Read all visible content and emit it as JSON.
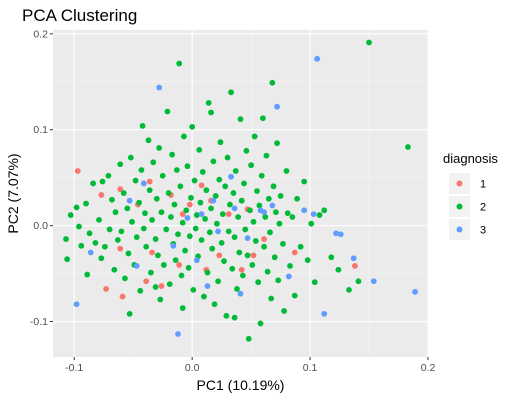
{
  "chart_data": {
    "type": "scatter",
    "title": "PCA Clustering",
    "xlabel": "PC1 (10.19%)",
    "ylabel": "PC2 (7.07%)",
    "xlim": [
      -0.118,
      0.2
    ],
    "ylim": [
      -0.137,
      0.204
    ],
    "xticks": [
      -0.1,
      0.0,
      0.1,
      0.2
    ],
    "xtick_labels": [
      "-0.1",
      "0.0",
      "0.1",
      "0.2"
    ],
    "yticks": [
      -0.1,
      0.0,
      0.1,
      0.2
    ],
    "ytick_labels": [
      "-0.1",
      "0.0",
      "0.1",
      "0.2"
    ],
    "grid": true,
    "panel_background": "#ebebeb",
    "legend": {
      "title": "diagnosis",
      "position": "right",
      "entries": [
        {
          "label": "1",
          "color": "#f8766d"
        },
        {
          "label": "2",
          "color": "#00ba38"
        },
        {
          "label": "3",
          "color": "#619cff"
        }
      ]
    },
    "series": [
      {
        "name": "1",
        "color": "#f8766d",
        "points": [
          [
            -0.097,
            0.057
          ],
          [
            -0.077,
            0.032
          ],
          [
            -0.061,
            0.038
          ],
          [
            -0.036,
            0.046
          ],
          [
            -0.046,
            0.022
          ],
          [
            -0.061,
            -0.024
          ],
          [
            -0.034,
            -0.028
          ],
          [
            -0.073,
            -0.066
          ],
          [
            -0.059,
            -0.074
          ],
          [
            -0.039,
            -0.058
          ],
          [
            -0.026,
            -0.063
          ],
          [
            -0.018,
            0.032
          ],
          [
            -0.008,
            0.012
          ],
          [
            0.008,
            0.042
          ],
          [
            0.016,
            0.026
          ],
          [
            0.023,
            -0.031
          ],
          [
            0.031,
            0.012
          ],
          [
            0.042,
            -0.046
          ],
          [
            0.052,
            -0.031
          ],
          [
            0.061,
            -0.014
          ],
          [
            0.087,
            -0.028
          ],
          [
            0.012,
            -0.046
          ],
          [
            -0.011,
            -0.041
          ],
          [
            0.138,
            -0.042
          ],
          [
            -0.002,
            0.022
          ],
          [
            0.047,
            0.017
          ]
        ]
      },
      {
        "name": "2",
        "color": "#00ba38",
        "points": [
          [
            -0.107,
            -0.014
          ],
          [
            -0.106,
            -0.035
          ],
          [
            -0.103,
            0.011
          ],
          [
            -0.098,
            0.019
          ],
          [
            -0.096,
            -0.001
          ],
          [
            -0.094,
            -0.021
          ],
          [
            -0.09,
            0.023
          ],
          [
            -0.087,
            -0.008
          ],
          [
            -0.084,
            0.044
          ],
          [
            -0.082,
            -0.018
          ],
          [
            -0.079,
            0.006
          ],
          [
            -0.077,
            -0.034
          ],
          [
            -0.076,
            0.046
          ],
          [
            -0.074,
            -0.022
          ],
          [
            -0.071,
            0.052
          ],
          [
            -0.07,
            -0.004
          ],
          [
            -0.068,
            0.027
          ],
          [
            -0.066,
            -0.046
          ],
          [
            -0.065,
            0.014
          ],
          [
            -0.063,
            -0.015
          ],
          [
            -0.061,
            0.064
          ],
          [
            -0.06,
            -0.006
          ],
          [
            -0.058,
            0.034
          ],
          [
            -0.057,
            -0.055
          ],
          [
            -0.055,
            0.018
          ],
          [
            -0.054,
            -0.029
          ],
          [
            -0.052,
            0.071
          ],
          [
            -0.051,
            0.004
          ],
          [
            -0.049,
            -0.041
          ],
          [
            -0.048,
            0.047
          ],
          [
            -0.047,
            -0.012
          ],
          [
            -0.045,
            0.024
          ],
          [
            -0.044,
            -0.068
          ],
          [
            -0.043,
            0.058
          ],
          [
            -0.041,
            -0.003
          ],
          [
            -0.04,
            0.013
          ],
          [
            -0.039,
            -0.022
          ],
          [
            -0.037,
            0.089
          ],
          [
            -0.036,
            0.037
          ],
          [
            -0.035,
            -0.049
          ],
          [
            -0.034,
            0.006
          ],
          [
            -0.033,
            0.066
          ],
          [
            -0.031,
            -0.014
          ],
          [
            -0.03,
            0.028
          ],
          [
            -0.029,
            -0.031
          ],
          [
            -0.028,
            0.081
          ],
          [
            -0.027,
            -0.077
          ],
          [
            -0.026,
            0.014
          ],
          [
            -0.025,
            0.052
          ],
          [
            -0.024,
            -0.041
          ],
          [
            -0.022,
            -0.004
          ],
          [
            -0.021,
            0.119
          ],
          [
            -0.02,
            0.034
          ],
          [
            -0.019,
            -0.061
          ],
          [
            -0.018,
            0.009
          ],
          [
            -0.017,
            0.074
          ],
          [
            -0.016,
            -0.019
          ],
          [
            -0.015,
            0.022
          ],
          [
            -0.014,
            -0.036
          ],
          [
            -0.013,
            0.058
          ],
          [
            -0.012,
            -0.009
          ],
          [
            -0.011,
            0.169
          ],
          [
            -0.01,
            0.041
          ],
          [
            -0.009,
            -0.052
          ],
          [
            -0.008,
            0.003
          ],
          [
            -0.007,
            0.093
          ],
          [
            -0.006,
            -0.026
          ],
          [
            -0.005,
            0.016
          ],
          [
            -0.004,
            0.062
          ],
          [
            -0.003,
            -0.044
          ],
          [
            -0.002,
            -0.011
          ],
          [
            -0.001,
            0.029
          ],
          [
            0.0,
            0.103
          ],
          [
            0.001,
            -0.067
          ],
          [
            0.002,
            0.047
          ],
          [
            0.003,
            -0.003
          ],
          [
            0.004,
            0.011
          ],
          [
            0.005,
            -0.032
          ],
          [
            0.006,
            0.079
          ],
          [
            0.007,
            0.024
          ],
          [
            0.008,
            -0.015
          ],
          [
            0.009,
            0.056
          ],
          [
            0.01,
            -0.074
          ],
          [
            0.011,
            0.007
          ],
          [
            0.012,
            0.037
          ],
          [
            0.013,
            -0.049
          ],
          [
            0.014,
            0.128
          ],
          [
            0.015,
            -0.007
          ],
          [
            0.016,
            0.018
          ],
          [
            0.017,
            -0.024
          ],
          [
            0.018,
            0.067
          ],
          [
            0.019,
            -0.082
          ],
          [
            0.02,
            0.031
          ],
          [
            0.021,
            0.002
          ],
          [
            0.022,
            -0.058
          ],
          [
            0.023,
            0.048
          ],
          [
            0.024,
            0.087
          ],
          [
            0.025,
            -0.018
          ],
          [
            0.026,
            0.012
          ],
          [
            0.027,
            -0.037
          ],
          [
            0.028,
            0.041
          ],
          [
            0.029,
            -0.094
          ],
          [
            0.03,
            0.071
          ],
          [
            0.031,
            -0.006
          ],
          [
            0.032,
            0.022
          ],
          [
            0.033,
            0.139
          ],
          [
            0.034,
            -0.045
          ],
          [
            0.035,
            0.034
          ],
          [
            0.036,
            -0.012
          ],
          [
            0.037,
            0.057
          ],
          [
            0.038,
            -0.066
          ],
          [
            0.039,
            0.009
          ],
          [
            0.04,
            -0.028
          ],
          [
            0.041,
            0.111
          ],
          [
            0.042,
            0.026
          ],
          [
            0.043,
            -0.052
          ],
          [
            0.044,
            0.044
          ],
          [
            0.045,
            -0.004
          ],
          [
            0.046,
            0.078
          ],
          [
            0.047,
            -0.031
          ],
          [
            0.048,
            -0.118
          ],
          [
            0.049,
            0.016
          ],
          [
            0.05,
            0.063
          ],
          [
            0.051,
            -0.041
          ],
          [
            0.052,
            0.004
          ],
          [
            0.053,
            0.093
          ],
          [
            0.054,
            -0.016
          ],
          [
            0.055,
            0.036
          ],
          [
            0.056,
            -0.059
          ],
          [
            0.057,
            0.021
          ],
          [
            0.058,
            -0.102
          ],
          [
            0.059,
            0.052
          ],
          [
            0.06,
            0.112
          ],
          [
            0.061,
            -0.022
          ],
          [
            0.062,
            0.009
          ],
          [
            0.063,
            0.073
          ],
          [
            0.064,
            -0.048
          ],
          [
            0.065,
            0.028
          ],
          [
            0.066,
            -0.007
          ],
          [
            0.067,
            -0.076
          ],
          [
            0.068,
            0.149
          ],
          [
            0.069,
            0.041
          ],
          [
            0.07,
            -0.033
          ],
          [
            0.071,
            0.014
          ],
          [
            0.072,
            0.086
          ],
          [
            0.073,
            -0.057
          ],
          [
            0.074,
            0.002
          ],
          [
            0.075,
            0.031
          ],
          [
            0.077,
            -0.019
          ],
          [
            0.078,
            -0.089
          ],
          [
            0.08,
            0.057
          ],
          [
            0.081,
            0.013
          ],
          [
            0.083,
            -0.042
          ],
          [
            0.085,
            0.009
          ],
          [
            0.087,
            -0.073
          ],
          [
            0.089,
            0.028
          ],
          [
            0.092,
            -0.022
          ],
          [
            0.095,
            0.046
          ],
          [
            0.098,
            -0.036
          ],
          [
            0.101,
            0.002
          ],
          [
            0.104,
            -0.059
          ],
          [
            0.108,
            0.011
          ],
          [
            0.112,
            0.016
          ],
          [
            0.118,
            -0.033
          ],
          [
            0.124,
            -0.046
          ],
          [
            0.133,
            -0.067
          ],
          [
            0.141,
            -0.058
          ],
          [
            0.15,
            0.191
          ],
          [
            0.183,
            0.082
          ],
          [
            -0.089,
            -0.051
          ],
          [
            -0.053,
            -0.092
          ],
          [
            -0.031,
            -0.064
          ],
          [
            -0.008,
            -0.086
          ],
          [
            0.036,
            -0.096
          ],
          [
            -0.042,
            0.104
          ],
          [
            0.016,
            0.118
          ]
        ]
      },
      {
        "name": "3",
        "color": "#619cff",
        "points": [
          [
            -0.098,
            -0.082
          ],
          [
            -0.086,
            -0.028
          ],
          [
            -0.053,
            0.026
          ],
          [
            -0.047,
            -0.042
          ],
          [
            -0.028,
            0.144
          ],
          [
            -0.016,
            -0.021
          ],
          [
            -0.012,
            -0.113
          ],
          [
            -0.004,
            0.008
          ],
          [
            0.004,
            -0.036
          ],
          [
            0.008,
            0.012
          ],
          [
            0.018,
            0.026
          ],
          [
            0.022,
            -0.006
          ],
          [
            0.033,
            0.051
          ],
          [
            0.036,
            0.018
          ],
          [
            0.047,
            -0.013
          ],
          [
            0.058,
            0.016
          ],
          [
            0.061,
            0.014
          ],
          [
            0.068,
            0.021
          ],
          [
            0.072,
            0.124
          ],
          [
            0.082,
            -0.053
          ],
          [
            0.095,
            0.016
          ],
          [
            0.103,
            0.012
          ],
          [
            0.106,
            0.174
          ],
          [
            0.112,
            -0.092
          ],
          [
            0.122,
            -0.008
          ],
          [
            0.126,
            -0.009
          ],
          [
            0.137,
            -0.034
          ],
          [
            0.154,
            -0.058
          ],
          [
            0.189,
            -0.069
          ],
          [
            0.041,
            -0.071
          ],
          [
            0.013,
            -0.063
          ],
          [
            -0.041,
            0.044
          ]
        ]
      }
    ]
  }
}
